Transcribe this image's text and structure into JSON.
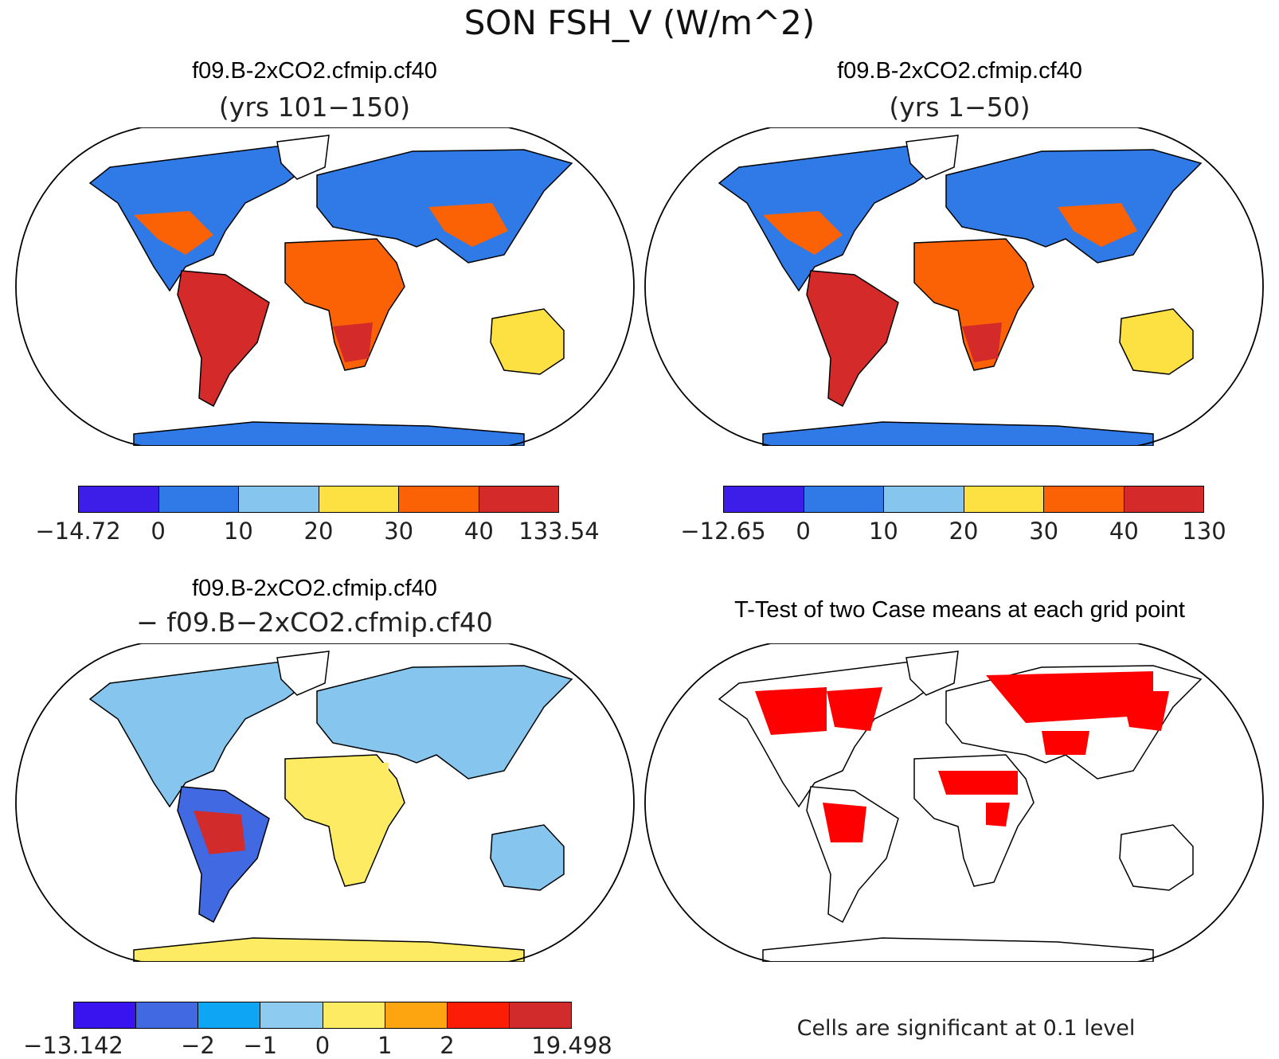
{
  "main_title": "SON FSH_V (W/m^2)",
  "panels": [
    {
      "title": "f09.B-2xCO2.cfmip.cf40",
      "subtitle": "(yrs 101−150)",
      "colorbar": {
        "colors": [
          "#3d1ee8",
          "#2f7ae6",
          "#85c5ee",
          "#fde042",
          "#fb6205",
          "#d52a2a"
        ],
        "ticks": [
          "−14.72",
          "0",
          "10",
          "20",
          "30",
          "40",
          "133.54"
        ]
      }
    },
    {
      "title": "f09.B-2xCO2.cfmip.cf40",
      "subtitle": "(yrs 1−50)",
      "colorbar": {
        "colors": [
          "#3d1ee8",
          "#2f7ae6",
          "#85c5ee",
          "#fde042",
          "#fb6205",
          "#d52a2a"
        ],
        "ticks": [
          "−12.65",
          "0",
          "10",
          "20",
          "30",
          "40",
          "130"
        ]
      }
    },
    {
      "title": "f09.B-2xCO2.cfmip.cf40",
      "subtitle": "− f09.B−2xCO2.cfmip.cf40",
      "colorbar": {
        "colors": [
          "#3a14ee",
          "#4169e1",
          "#0ea5f5",
          "#8ecbf0",
          "#fdec63",
          "#fca510",
          "#fc1d06",
          "#d12b2b"
        ],
        "ticks": [
          "−13.142",
          "",
          "−2",
          "−1",
          "0",
          "1",
          "2",
          "",
          "19.498"
        ]
      }
    },
    {
      "title": "T-Test of two Case means at each grid point",
      "subtitle": "",
      "note": "Cells are significant at 0.1 level",
      "significance_color": "#ff0000"
    }
  ]
}
